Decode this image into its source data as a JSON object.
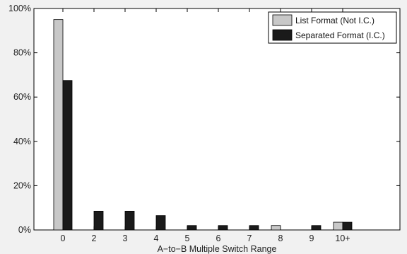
{
  "chart_data": {
    "type": "bar",
    "title": "",
    "xlabel": "A−to−B Multiple Switch Range",
    "ylabel": "",
    "categories": [
      "0",
      "2",
      "3",
      "4",
      "5",
      "6",
      "7",
      "8",
      "9",
      "10+"
    ],
    "y_ticks": [
      "0%",
      "20%",
      "40%",
      "60%",
      "80%",
      "100%"
    ],
    "ylim": [
      0,
      100
    ],
    "grid": false,
    "legend_position": "top-right",
    "series": [
      {
        "name": "List Format (Not I.C.)",
        "color": "#c8c8c8",
        "values": [
          95,
          0,
          0,
          0,
          0,
          0,
          0,
          2,
          0,
          3.5
        ]
      },
      {
        "name": "Separated Format (I.C.)",
        "color": "#1a1a1a",
        "values": [
          67.5,
          8.5,
          8.5,
          6.5,
          2,
          2,
          2,
          0,
          2,
          3.5
        ]
      }
    ]
  }
}
